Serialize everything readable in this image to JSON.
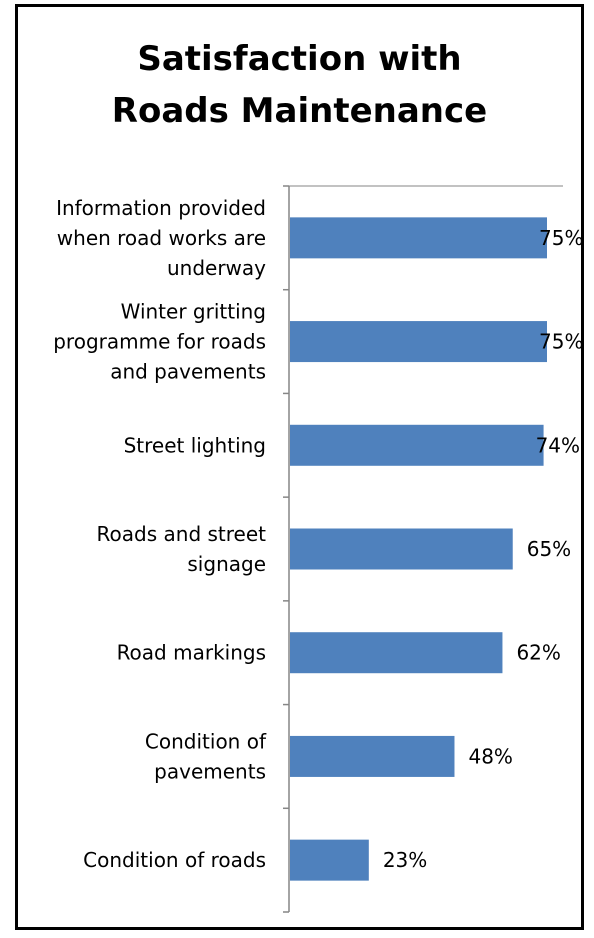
{
  "chart_data": {
    "type": "bar",
    "orientation": "horizontal",
    "title_lines": [
      "Satisfaction with",
      "Roads Maintenance"
    ],
    "categories": [
      [
        "Information provided",
        "when road works are",
        "underway"
      ],
      [
        "Winter gritting",
        "programme for roads",
        "and pavements"
      ],
      [
        "Street lighting"
      ],
      [
        "Roads and street",
        "signage"
      ],
      [
        "Road markings"
      ],
      [
        "Condition of",
        "pavements"
      ],
      [
        "Condition of roads"
      ]
    ],
    "values": [
      75,
      75,
      74,
      65,
      62,
      48,
      23
    ],
    "data_labels": [
      "75%",
      "75%",
      "74%",
      "65%",
      "62%",
      "48%",
      "23%"
    ],
    "xlim": [
      0,
      80
    ],
    "grid": false,
    "legend": "none",
    "colors": {
      "bar": "#4F81BD",
      "axis": "#868686",
      "text": "#000000",
      "frame": "#000000"
    }
  }
}
